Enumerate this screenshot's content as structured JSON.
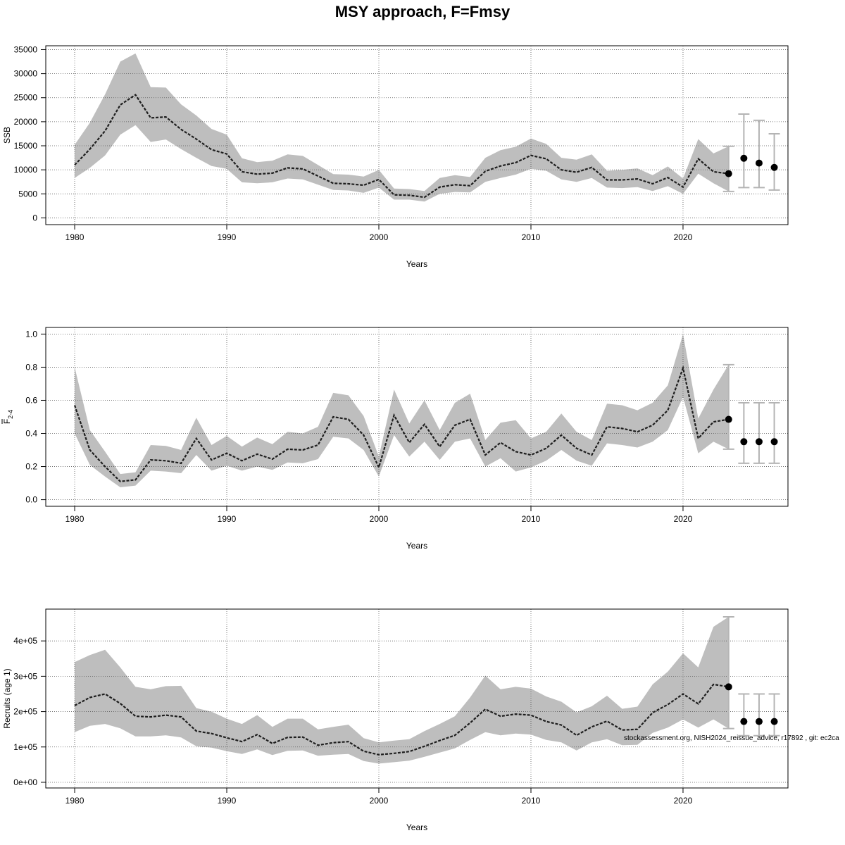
{
  "title": "MSY approach, F=Fmsy",
  "footer": "stockassessment.org, NISH2024_reissue_advice, r17892 , git: ec2ca",
  "colors": {
    "band": "#bebebe",
    "line": "#1e1e1e",
    "errorbar": "#b4b4b4",
    "point": "#000000",
    "grid": "#5a5a5a",
    "frame": "#000000"
  },
  "chart_data": [
    {
      "type": "line",
      "id": "ssb",
      "xlabel": "Years",
      "ylabel": "SSB",
      "ylabel_sub": "",
      "xlim": [
        1978.1,
        2026.9
      ],
      "ylim": [
        -1400,
        35800
      ],
      "xticks": [
        1980,
        1990,
        2000,
        2010,
        2020
      ],
      "xtick_labels": [
        "1980",
        "1990",
        "2000",
        "2010",
        "2020"
      ],
      "yticks": [
        0,
        5000,
        10000,
        15000,
        20000,
        25000,
        30000,
        35000
      ],
      "ytick_labels": [
        "0",
        "5000",
        "10000",
        "15000",
        "20000",
        "25000",
        "30000",
        "35000"
      ],
      "grid": true,
      "x": [
        1980,
        1981,
        1982,
        1983,
        1984,
        1985,
        1986,
        1987,
        1988,
        1989,
        1990,
        1991,
        1992,
        1993,
        1994,
        1995,
        1996,
        1997,
        1998,
        1999,
        2000,
        2001,
        2002,
        2003,
        2004,
        2005,
        2006,
        2007,
        2008,
        2009,
        2010,
        2011,
        2012,
        2013,
        2014,
        2015,
        2016,
        2017,
        2018,
        2019,
        2020,
        2021,
        2022,
        2023
      ],
      "estimate": [
        11000,
        14300,
        18100,
        23500,
        25600,
        20800,
        21000,
        18400,
        16400,
        14200,
        13300,
        9600,
        9100,
        9300,
        10400,
        10200,
        8700,
        7200,
        7100,
        6800,
        8000,
        4800,
        4700,
        4300,
        6400,
        6900,
        6700,
        9700,
        10800,
        11500,
        13000,
        12300,
        10000,
        9500,
        10500,
        7900,
        7900,
        8100,
        7100,
        8400,
        6400,
        12300,
        9600,
        9200
      ],
      "lower": [
        8300,
        10400,
        13000,
        17300,
        19300,
        15800,
        16300,
        14300,
        12500,
        10800,
        10200,
        7400,
        7200,
        7400,
        8200,
        8000,
        6900,
        5800,
        5700,
        5200,
        6300,
        3800,
        3800,
        3400,
        5000,
        5400,
        5300,
        7500,
        8300,
        9000,
        10200,
        9800,
        8000,
        7500,
        8300,
        6300,
        6200,
        6400,
        5600,
        6600,
        5000,
        9200,
        7200,
        5500
      ],
      "upper": [
        15200,
        19800,
        25700,
        32500,
        34200,
        27200,
        27100,
        23600,
        21300,
        18500,
        17300,
        12400,
        11600,
        11900,
        13200,
        12900,
        11000,
        9100,
        9000,
        8600,
        10000,
        6100,
        6000,
        5600,
        8300,
        8900,
        8500,
        12500,
        14100,
        14800,
        16500,
        15400,
        12500,
        12100,
        13200,
        9800,
        10000,
        10300,
        8900,
        10700,
        8200,
        16400,
        13400,
        14900
      ],
      "projection": {
        "x": [
          2024,
          2025,
          2026
        ],
        "values": [
          12400,
          11400,
          10500
        ],
        "lower": [
          6300,
          6300,
          5800
        ],
        "upper": [
          21600,
          20300,
          17500
        ]
      },
      "last_bar": {
        "x": 2023,
        "value": 9200,
        "lower": 5500,
        "upper": 14900
      }
    },
    {
      "type": "line",
      "id": "fbar",
      "xlabel": "Years",
      "ylabel": "F",
      "ylabel_sub": "2-4",
      "xlim": [
        1978.1,
        2026.9
      ],
      "ylim": [
        -0.04,
        1.04
      ],
      "xticks": [
        1980,
        1990,
        2000,
        2010,
        2020
      ],
      "xtick_labels": [
        "1980",
        "1990",
        "2000",
        "2010",
        "2020"
      ],
      "yticks": [
        0,
        0.2,
        0.4,
        0.6,
        0.8,
        1.0
      ],
      "ytick_labels": [
        "0.0",
        "0.2",
        "0.4",
        "0.6",
        "0.8",
        "1.0"
      ],
      "grid": true,
      "x": [
        1980,
        1981,
        1982,
        1983,
        1984,
        1985,
        1986,
        1987,
        1988,
        1989,
        1990,
        1991,
        1992,
        1993,
        1994,
        1995,
        1996,
        1997,
        1998,
        1999,
        2000,
        2001,
        2002,
        2003,
        2004,
        2005,
        2006,
        2007,
        2008,
        2009,
        2010,
        2011,
        2012,
        2013,
        2014,
        2015,
        2016,
        2017,
        2018,
        2019,
        2020,
        2021,
        2022,
        2023
      ],
      "estimate": [
        0.57,
        0.3,
        0.2,
        0.11,
        0.12,
        0.24,
        0.235,
        0.22,
        0.37,
        0.24,
        0.28,
        0.235,
        0.275,
        0.245,
        0.305,
        0.3,
        0.33,
        0.5,
        0.485,
        0.39,
        0.195,
        0.51,
        0.345,
        0.455,
        0.32,
        0.45,
        0.485,
        0.27,
        0.345,
        0.29,
        0.27,
        0.31,
        0.39,
        0.31,
        0.27,
        0.44,
        0.43,
        0.41,
        0.45,
        0.54,
        0.795,
        0.37,
        0.47,
        0.485
      ],
      "lower": [
        0.4,
        0.21,
        0.14,
        0.075,
        0.085,
        0.175,
        0.17,
        0.16,
        0.27,
        0.175,
        0.205,
        0.175,
        0.2,
        0.18,
        0.225,
        0.22,
        0.245,
        0.38,
        0.37,
        0.3,
        0.14,
        0.39,
        0.26,
        0.35,
        0.24,
        0.35,
        0.37,
        0.2,
        0.25,
        0.17,
        0.195,
        0.235,
        0.3,
        0.235,
        0.205,
        0.34,
        0.33,
        0.315,
        0.35,
        0.42,
        0.62,
        0.28,
        0.35,
        0.305
      ],
      "upper": [
        0.8,
        0.42,
        0.29,
        0.155,
        0.165,
        0.33,
        0.325,
        0.3,
        0.495,
        0.33,
        0.385,
        0.32,
        0.375,
        0.335,
        0.41,
        0.4,
        0.44,
        0.645,
        0.63,
        0.505,
        0.26,
        0.665,
        0.46,
        0.6,
        0.42,
        0.585,
        0.64,
        0.36,
        0.465,
        0.48,
        0.37,
        0.41,
        0.52,
        0.41,
        0.36,
        0.58,
        0.57,
        0.54,
        0.585,
        0.69,
        1.0,
        0.49,
        0.665,
        0.815
      ],
      "projection": {
        "x": [
          2024,
          2025,
          2026
        ],
        "values": [
          0.35,
          0.35,
          0.35
        ],
        "lower": [
          0.22,
          0.22,
          0.22
        ],
        "upper": [
          0.585,
          0.585,
          0.585
        ]
      },
      "last_bar": {
        "x": 2023,
        "value": 0.485,
        "lower": 0.305,
        "upper": 0.815
      }
    },
    {
      "type": "line",
      "id": "recruits",
      "xlabel": "Years",
      "ylabel": "Recruits (age 1)",
      "ylabel_sub": "",
      "xlim": [
        1978.1,
        2026.9
      ],
      "ylim": [
        -16000,
        490000
      ],
      "xticks": [
        1980,
        1990,
        2000,
        2010,
        2020
      ],
      "xtick_labels": [
        "1980",
        "1990",
        "2000",
        "2010",
        "2020"
      ],
      "yticks": [
        0,
        100000,
        200000,
        300000,
        400000
      ],
      "ytick_labels": [
        "0e+00",
        "1e+05",
        "2e+05",
        "3e+05",
        "4e+05"
      ],
      "grid": true,
      "x": [
        1980,
        1981,
        1982,
        1983,
        1984,
        1985,
        1986,
        1987,
        1988,
        1989,
        1990,
        1991,
        1992,
        1993,
        1994,
        1995,
        1996,
        1997,
        1998,
        1999,
        2000,
        2001,
        2002,
        2003,
        2004,
        2005,
        2006,
        2007,
        2008,
        2009,
        2010,
        2011,
        2012,
        2013,
        2014,
        2015,
        2016,
        2017,
        2018,
        2019,
        2020,
        2021,
        2022,
        2023
      ],
      "estimate": [
        217000,
        240000,
        250000,
        223000,
        187000,
        185000,
        190000,
        185000,
        145000,
        138000,
        126000,
        115000,
        135000,
        110000,
        127000,
        128000,
        105000,
        112000,
        115000,
        88000,
        78000,
        82000,
        87000,
        102000,
        118000,
        133000,
        168000,
        207000,
        187000,
        193000,
        190000,
        172000,
        162000,
        133000,
        157000,
        173000,
        148000,
        150000,
        197000,
        220000,
        250000,
        222000,
        277000,
        270000
      ],
      "lower": [
        142000,
        160000,
        165000,
        153000,
        130000,
        130000,
        133000,
        127000,
        102000,
        98000,
        88000,
        80000,
        93000,
        77000,
        89000,
        90000,
        75000,
        78000,
        80000,
        60000,
        53000,
        57000,
        61000,
        72000,
        84000,
        96000,
        120000,
        142000,
        133000,
        138000,
        135000,
        120000,
        113000,
        90000,
        113000,
        122000,
        105000,
        106000,
        140000,
        155000,
        178000,
        155000,
        178000,
        152000
      ],
      "upper": [
        340000,
        360000,
        375000,
        325000,
        270000,
        263000,
        272000,
        273000,
        210000,
        200000,
        180000,
        165000,
        190000,
        157000,
        180000,
        180000,
        150000,
        157000,
        163000,
        125000,
        113000,
        118000,
        122000,
        145000,
        165000,
        187000,
        240000,
        302000,
        263000,
        270000,
        265000,
        243000,
        228000,
        198000,
        215000,
        245000,
        208000,
        214000,
        277000,
        313000,
        365000,
        325000,
        440000,
        468000
      ],
      "projection": {
        "x": [
          2024,
          2025,
          2026
        ],
        "values": [
          172000,
          172000,
          172000
        ],
        "lower": [
          132000,
          132000,
          132000
        ],
        "upper": [
          250000,
          250000,
          250000
        ]
      },
      "last_bar": {
        "x": 2023,
        "value": 270000,
        "lower": 152000,
        "upper": 468000
      }
    }
  ]
}
